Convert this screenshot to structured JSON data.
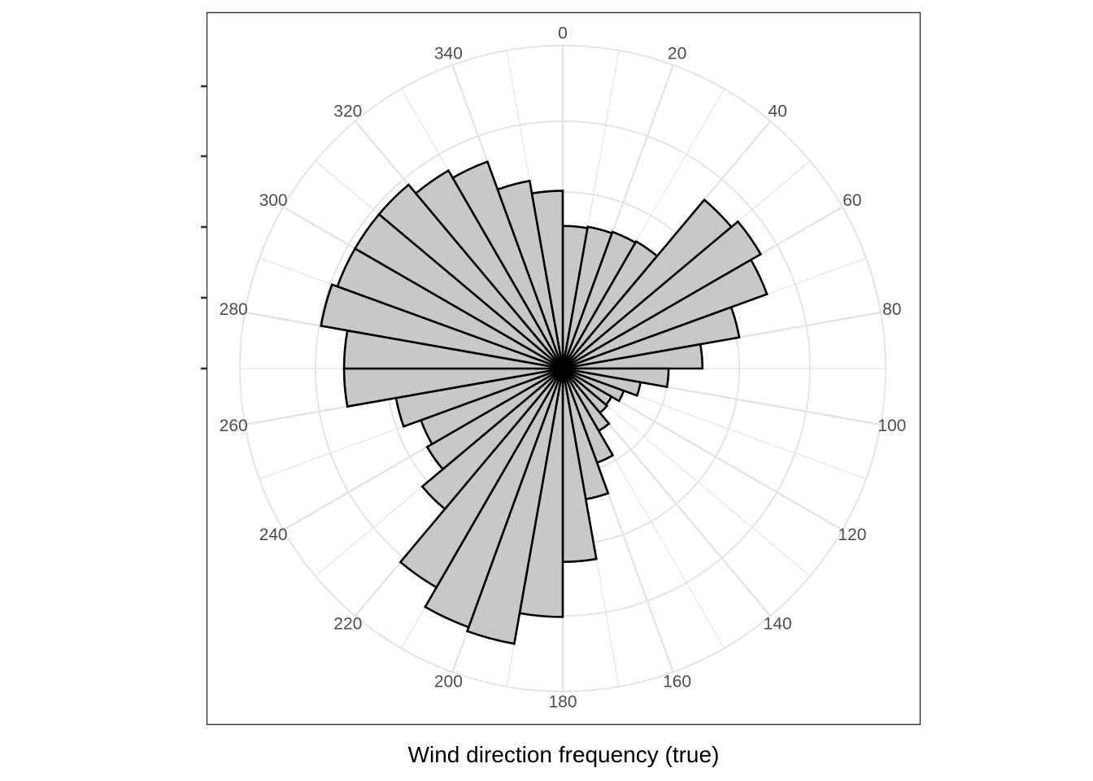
{
  "chart_data": {
    "type": "bar",
    "coord": "polar",
    "xlabel": "Wind direction frequency (true)",
    "ylabel": "",
    "title": "",
    "bin_width_deg": 10,
    "directions": [
      5,
      15,
      25,
      35,
      45,
      55,
      65,
      75,
      85,
      95,
      105,
      115,
      125,
      135,
      145,
      155,
      165,
      175,
      185,
      195,
      205,
      215,
      225,
      235,
      245,
      255,
      265,
      275,
      285,
      295,
      305,
      315,
      325,
      335,
      345,
      355
    ],
    "values": [
      0.505,
      0.51,
      0.515,
      0.52,
      0.78,
      0.81,
      0.77,
      0.635,
      0.495,
      0.375,
      0.28,
      0.23,
      0.2,
      0.205,
      0.255,
      0.355,
      0.47,
      0.685,
      0.88,
      0.99,
      0.975,
      0.895,
      0.65,
      0.555,
      0.535,
      0.6,
      0.775,
      0.775,
      0.87,
      0.85,
      0.85,
      0.85,
      0.81,
      0.78,
      0.675,
      0.63
    ],
    "ylim": [
      0,
      1.25
    ],
    "theta_ticks": [
      0,
      20,
      40,
      60,
      80,
      100,
      120,
      140,
      160,
      180,
      200,
      220,
      240,
      260,
      280,
      300,
      320,
      340
    ],
    "fill_color": "#c8c8c8",
    "stroke_color": "#000000",
    "grid_color": "#e4e4e4",
    "grid": true
  }
}
